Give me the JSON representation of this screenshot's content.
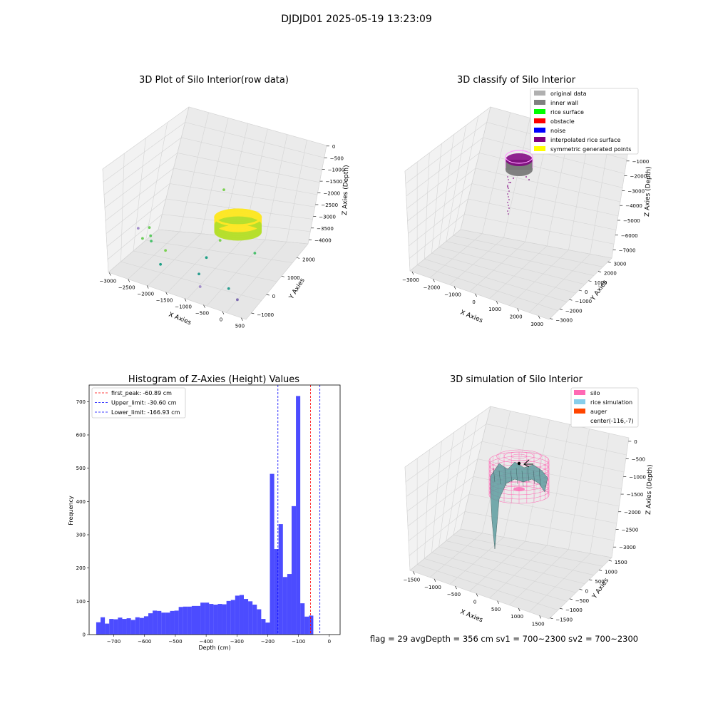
{
  "figure": {
    "suptitle": "DJDJD01 2025-05-19 13:23:09",
    "status_line": "flag = 29  avgDepth = 356 cm  sv1 = 700~2300  sv2 = 700~2300"
  },
  "chart_data": [
    {
      "type": "scatter3d",
      "title": "3D Plot of Silo Interior(row data)",
      "xlabel": "X Axies",
      "ylabel": "Y Axies",
      "zlabel": "Z Axies (Depth)",
      "x_ticks": [
        "−3000",
        "−2500",
        "−2000",
        "−1500",
        "−1000",
        "−500",
        "0",
        "500"
      ],
      "y_ticks": [
        "−1000",
        "0",
        "1000",
        "2000"
      ],
      "z_ticks": [
        "0",
        "−500",
        "−1000",
        "−1500",
        "−2000",
        "−2500",
        "−3000",
        "−3500",
        "−4000"
      ],
      "xlim": [
        -3100,
        600
      ],
      "ylim": [
        -1500,
        2500
      ],
      "zlim": [
        -4200,
        100
      ],
      "ring": {
        "center_x": -116,
        "center_y": -7,
        "radius": 900,
        "z_top": -1000,
        "z_bottom": -1600,
        "colors": [
          "#b5de2b",
          "#fde725"
        ]
      },
      "points": [
        {
          "x": -900,
          "y": 1200,
          "z": -800,
          "color": "#7ad151"
        },
        {
          "x": -2600,
          "y": -600,
          "z": -2500,
          "color": "#a38ec9"
        },
        {
          "x": -2400,
          "y": -300,
          "z": -2500,
          "color": "#6ccd5a"
        },
        {
          "x": -2300,
          "y": -500,
          "z": -2700,
          "color": "#5ec962"
        },
        {
          "x": -2450,
          "y": -700,
          "z": -2800,
          "color": "#6ccd5a"
        },
        {
          "x": -2250,
          "y": -600,
          "z": -2850,
          "color": "#4ac16d"
        },
        {
          "x": -1900,
          "y": -500,
          "z": -3100,
          "color": "#7ad151"
        },
        {
          "x": -1900,
          "y": -900,
          "z": -3500,
          "color": "#1fa187"
        },
        {
          "x": -800,
          "y": 900,
          "z": -2300,
          "color": "#b5de2b"
        },
        {
          "x": -700,
          "y": 300,
          "z": -2400,
          "color": "#7ad151"
        },
        {
          "x": -500,
          "y": 500,
          "z": -1700,
          "color": "#b396d0"
        },
        {
          "x": -900,
          "y": -200,
          "z": -3000,
          "color": "#1fa187"
        },
        {
          "x": -1000,
          "y": -500,
          "z": -3600,
          "color": "#2a9d8f"
        },
        {
          "x": -800,
          "y": -1000,
          "z": -3800,
          "color": "#a38ec9"
        },
        {
          "x": -100,
          "y": -800,
          "z": -3600,
          "color": "#2a9d8f"
        },
        {
          "x": 100,
          "y": -700,
          "z": -4000,
          "color": "#7d6bb0"
        },
        {
          "x": 200,
          "y": 400,
          "z": -2500,
          "color": "#4ac16d"
        },
        {
          "x": 0,
          "y": 1400,
          "z": -1900,
          "color": "#5ec962"
        }
      ]
    },
    {
      "type": "scatter3d",
      "title": "3D classify of Silo Interior",
      "xlabel": "X Axies",
      "ylabel": "Y Axies",
      "zlabel": "Z Axies (Depth)",
      "x_ticks": [
        "−3000",
        "−2000",
        "−1000",
        "0",
        "1000",
        "2000",
        "3000"
      ],
      "y_ticks": [
        "−3000",
        "−2000",
        "−1000",
        "0",
        "1000",
        "2000",
        "3000"
      ],
      "z_ticks": [
        "0",
        "−1000",
        "−2000",
        "−3000",
        "−4000",
        "−5000",
        "−6000",
        "−7000"
      ],
      "legend_position": "top-right",
      "legend": [
        {
          "label": "original data",
          "color": "#b0b0b0"
        },
        {
          "label": "inner wall",
          "color": "#808080"
        },
        {
          "label": "rice surface",
          "color": "#00ff00"
        },
        {
          "label": "obstacle",
          "color": "#ff0000"
        },
        {
          "label": "noise",
          "color": "#0000ff"
        },
        {
          "label": "interpolated rice surface",
          "color": "#800080"
        },
        {
          "label": "symmetric generated points",
          "color": "#ffff00"
        }
      ]
    },
    {
      "type": "bar",
      "title": "Histogram of Z-Axies (Height) Values",
      "xlabel": "Depth (cm)",
      "ylabel": "Frequency",
      "xlim": [
        -780,
        35
      ],
      "ylim": [
        0,
        750
      ],
      "x_ticks": [
        -700,
        -600,
        -500,
        -400,
        -300,
        -200,
        -100,
        0
      ],
      "x_tick_labels": [
        "−700",
        "−600",
        "−500",
        "−400",
        "−300",
        "−200",
        "−100",
        "0"
      ],
      "y_ticks": [
        0,
        100,
        200,
        300,
        400,
        500,
        600,
        700
      ],
      "bin_start": -757,
      "bin_width": 14.1,
      "color": "#0000ff",
      "values": [
        37,
        52,
        33,
        47,
        46,
        51,
        47,
        49,
        44,
        52,
        50,
        55,
        64,
        72,
        71,
        66,
        66,
        71,
        72,
        83,
        84,
        84,
        86,
        86,
        96,
        96,
        92,
        90,
        92,
        91,
        101,
        104,
        117,
        119,
        107,
        100,
        90,
        76,
        47,
        36,
        483,
        257,
        332,
        173,
        182,
        386,
        717,
        94,
        54,
        57
      ],
      "vlines": [
        {
          "label": "first_peak: -60.89 cm",
          "x": -60.89,
          "color": "#ff0000"
        },
        {
          "label": "Upper_limit: -30.60 cm",
          "x": -30.6,
          "color": "#0000ff"
        },
        {
          "label": "Lower_limit: -166.93 cm",
          "x": -166.93,
          "color": "#0000ff"
        }
      ],
      "legend_position": "top-left"
    },
    {
      "type": "surface3d",
      "title": "3D simulation of Silo Interior",
      "xlabel": "X Axies",
      "ylabel": "Y Axies",
      "zlabel": "Z Axies (Depth)",
      "x_ticks": [
        "−1500",
        "−1000",
        "−500",
        "0",
        "500",
        "1000",
        "1500"
      ],
      "y_ticks": [
        "−1500",
        "−1000",
        "−500",
        "0",
        "500",
        "1000",
        "1500"
      ],
      "z_ticks": [
        "0",
        "−500",
        "−1000",
        "−1500",
        "−2000",
        "−2500",
        "−3000"
      ],
      "legend_position": "top-right",
      "legend": [
        {
          "label": "silo",
          "color": "#ff69b4"
        },
        {
          "label": "rice simulation",
          "color": "#87ceeb"
        },
        {
          "label": "auger",
          "color": "#ff4500"
        },
        {
          "label": "center(-116,-7)",
          "color": "none"
        }
      ]
    }
  ]
}
